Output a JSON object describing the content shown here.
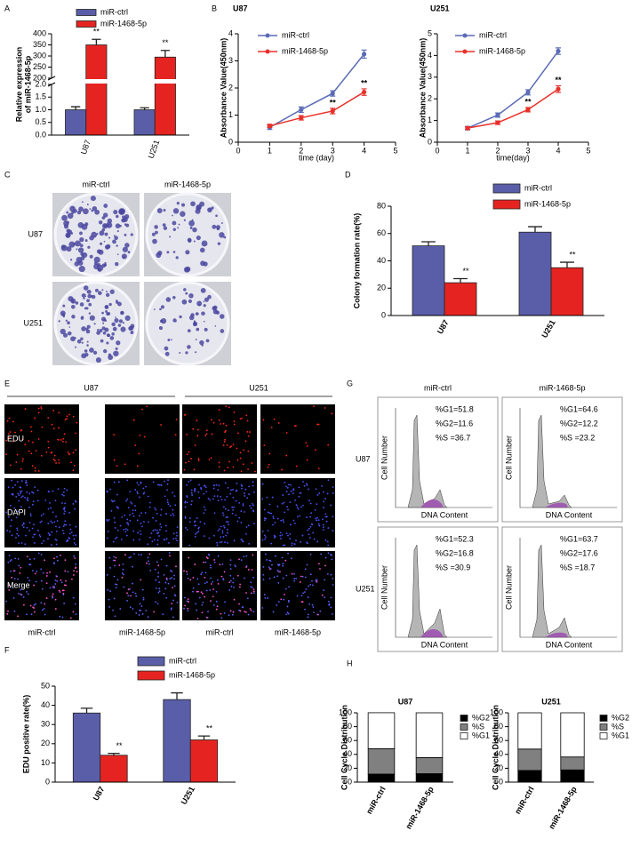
{
  "panel_labels": [
    "A",
    "B",
    "C",
    "D",
    "E",
    "F",
    "G",
    "H"
  ],
  "chart_data": [
    {
      "type": "bar",
      "ylabel": [
        "Relative expression",
        "of miR-1468-5p"
      ],
      "categories": [
        "U87",
        "U251"
      ],
      "series": [
        {
          "name": "miR-ctrl",
          "color": "#5a5ea8",
          "values": [
            1.0,
            1.0
          ],
          "errors": [
            0.12,
            0.08
          ]
        },
        {
          "name": "miR-1468-5p",
          "color": "#e52421",
          "values": [
            350,
            295
          ],
          "errors": [
            25,
            30
          ]
        }
      ],
      "ylim": [
        0,
        400
      ],
      "ybreak": [
        2,
        200
      ],
      "yticks": [
        {
          "value": 0,
          "label": "0.0"
        },
        0.5,
        {
          "value": 1,
          "label": "1.0"
        },
        1.5,
        {
          "value": 2,
          "label": "2.0"
        },
        200,
        250,
        300,
        350,
        400
      ],
      "annotations": [
        {
          "text": "**",
          "series": 1,
          "index": 0
        },
        {
          "text": "**",
          "series": 1,
          "index": 1
        }
      ]
    },
    {
      "type": "line",
      "title": "U87",
      "xlabel": "time (day)",
      "ylabel": "Absorbance Value(450nm)",
      "x": [
        1,
        2,
        3,
        4
      ],
      "xlim": [
        0,
        5
      ],
      "xticks": [
        0,
        1,
        2,
        3,
        4,
        5
      ],
      "ylim": [
        0,
        4
      ],
      "yticks": [
        0,
        1,
        2,
        3,
        4
      ],
      "series": [
        {
          "name": "miR-ctrl",
          "color": "#5b6bb5",
          "values": [
            0.55,
            1.2,
            1.8,
            3.25
          ],
          "errors": [
            0.08,
            0.1,
            0.1,
            0.15
          ]
        },
        {
          "name": "miR-1468-5p",
          "color": "#e8302a",
          "values": [
            0.6,
            0.9,
            1.15,
            1.85
          ],
          "errors": [
            0.06,
            0.08,
            0.1,
            0.12
          ]
        }
      ],
      "annotations": [
        {
          "text": "**",
          "series": 1,
          "index": 2
        },
        {
          "text": "**",
          "series": 1,
          "index": 3
        }
      ]
    },
    {
      "type": "line",
      "title": "U251",
      "xlabel": "time(day)",
      "ylabel": "Absorbance Value(450nm)",
      "x": [
        1,
        2,
        3,
        4
      ],
      "xlim": [
        0,
        5
      ],
      "xticks": [
        0,
        1,
        2,
        3,
        4,
        5
      ],
      "ylim": [
        0,
        5
      ],
      "yticks": [
        0,
        1,
        2,
        3,
        4,
        5
      ],
      "series": [
        {
          "name": "miR-ctrl",
          "color": "#5b6bb5",
          "values": [
            0.65,
            1.25,
            2.3,
            4.2
          ],
          "errors": [
            0.08,
            0.1,
            0.12,
            0.15
          ]
        },
        {
          "name": "miR-1468-5p",
          "color": "#e8302a",
          "values": [
            0.65,
            0.9,
            1.5,
            2.45
          ],
          "errors": [
            0.06,
            0.08,
            0.1,
            0.15
          ]
        }
      ],
      "annotations": [
        {
          "text": "**",
          "series": 1,
          "index": 2
        },
        {
          "text": "**",
          "series": 1,
          "index": 3
        }
      ]
    },
    {
      "type": "bar",
      "ylabel": "Colony formation rate(%)",
      "categories": [
        "U87",
        "U251"
      ],
      "series": [
        {
          "name": "miR-ctrl",
          "color": "#5a5ea8",
          "values": [
            51,
            61
          ],
          "errors": [
            3,
            4
          ]
        },
        {
          "name": "miR-1468-5p",
          "color": "#e52421",
          "values": [
            24,
            35
          ],
          "errors": [
            3,
            4
          ]
        }
      ],
      "ylim": [
        0,
        80
      ],
      "yticks": [
        0,
        20,
        40,
        60,
        80
      ],
      "annotations": [
        {
          "text": "**",
          "series": 1,
          "index": 0
        },
        {
          "text": "**",
          "series": 1,
          "index": 1
        }
      ]
    },
    {
      "type": "bar",
      "ylabel": "EDU positive rate(%)",
      "categories": [
        "U87",
        "U251"
      ],
      "series": [
        {
          "name": "miR-ctrl",
          "color": "#5a5ea8",
          "values": [
            36,
            43
          ],
          "errors": [
            2.5,
            3.5
          ]
        },
        {
          "name": "miR-1468-5p",
          "color": "#e52421",
          "values": [
            14,
            22
          ],
          "errors": [
            1,
            2
          ]
        }
      ],
      "ylim": [
        0,
        50
      ],
      "yticks": [
        0,
        10,
        20,
        30,
        40,
        50
      ],
      "annotations": [
        {
          "text": "**",
          "series": 1,
          "index": 0
        },
        {
          "text": "**",
          "series": 1,
          "index": 1
        }
      ]
    },
    {
      "type": "stacked",
      "title": "U87",
      "ylabel": "Cell Cycle Distribution",
      "categories": [
        "miR-ctrl",
        "miR-1468-5p"
      ],
      "series": [
        {
          "name": "%G2",
          "color": "#000000",
          "values": [
            11.6,
            12.2
          ]
        },
        {
          "name": "%S",
          "color": "#808080",
          "values": [
            36.7,
            23.2
          ]
        },
        {
          "name": "%G1",
          "color": "#ffffff",
          "values": [
            51.8,
            64.6
          ]
        }
      ],
      "ylim": [
        0,
        100
      ],
      "yticks": [
        0,
        20,
        40,
        60,
        80,
        100
      ]
    },
    {
      "type": "stacked",
      "title": "U251",
      "ylabel": "Cell Cycle Distribution",
      "categories": [
        "miR-ctrl",
        "miR-1468-5p"
      ],
      "series": [
        {
          "name": "%G2",
          "color": "#000000",
          "values": [
            16.8,
            17.6
          ]
        },
        {
          "name": "%S",
          "color": "#808080",
          "values": [
            30.9,
            18.7
          ]
        },
        {
          "name": "%G1",
          "color": "#ffffff",
          "values": [
            52.3,
            63.7
          ]
        }
      ],
      "ylim": [
        0,
        100
      ],
      "yticks": [
        0,
        20,
        40,
        60,
        80,
        100
      ]
    }
  ],
  "colony": {
    "columns": [
      "miR-ctrl",
      "miR-1468-5p"
    ],
    "rows": [
      "U87",
      "U251"
    ]
  },
  "edu": {
    "groups": [
      "U87",
      "U251"
    ],
    "rows": [
      "EDU",
      "DAPI",
      "Merge"
    ],
    "columns": [
      "miR-ctrl",
      "miR-1468-5p",
      "miR-ctrl",
      "miR-1468-5p"
    ]
  },
  "cell_cycle": {
    "columns": [
      "miR-ctrl",
      "miR-1468-5p"
    ],
    "rows": [
      "U87",
      "U251"
    ],
    "y_axis": "Cell Number",
    "x_axis": "DNA Content",
    "stats": [
      [
        [
          "%G1=51.8",
          "%G2=11.6",
          "%S =36.7"
        ],
        [
          "%G1=64.6",
          "%G2=12.2",
          "%S =23.2"
        ]
      ],
      [
        [
          "%G1=52.3",
          "%G2=16.8",
          "%S =30.9"
        ],
        [
          "%G1=63.7",
          "%G2=17.6",
          "%S =18.7"
        ]
      ]
    ]
  }
}
